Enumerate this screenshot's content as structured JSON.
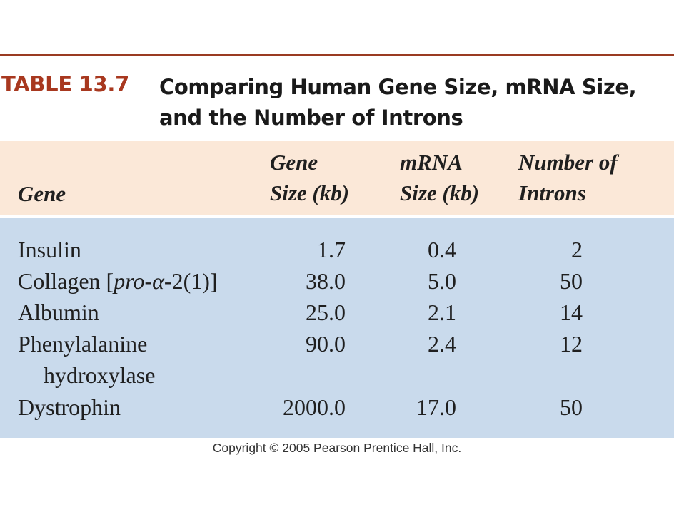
{
  "table_label": "TABLE 13.7",
  "title_line1": "Comparing Human Gene Size, mRNA Size,",
  "title_line2": "and the Number of Introns",
  "headers": {
    "gene": "Gene",
    "gene_size_line1": "Gene",
    "gene_size_line2": "Size (kb)",
    "mrna_size_line1": "mRNA",
    "mrna_size_line2": "Size (kb)",
    "introns_line1": "Number of",
    "introns_line2": "Introns"
  },
  "rows": [
    {
      "gene": "Insulin",
      "gene_size": "1.7",
      "mrna_size": "0.4",
      "introns": "2"
    },
    {
      "gene_prefix": "Collagen [",
      "gene_italic": "pro-α",
      "gene_suffix": "-2(1)]",
      "gene_size": "38.0",
      "mrna_size": "5.0",
      "introns": "50"
    },
    {
      "gene": "Albumin",
      "gene_size": "25.0",
      "mrna_size": "2.1",
      "introns": "14"
    },
    {
      "gene": "Phenylalanine",
      "gene_line2": "hydroxylase",
      "gene_size": "90.0",
      "mrna_size": "2.4",
      "introns": "12"
    },
    {
      "gene": "Dystrophin",
      "gene_size": "2000.0",
      "mrna_size": "17.0",
      "introns": "50"
    }
  ],
  "colors": {
    "rule": "#9a3b22",
    "label": "#a8381f",
    "header_band": "#fbe8d8",
    "body_band": "#c9daec"
  },
  "copyright": "Copyright © 2005 Pearson Prentice Hall, Inc."
}
